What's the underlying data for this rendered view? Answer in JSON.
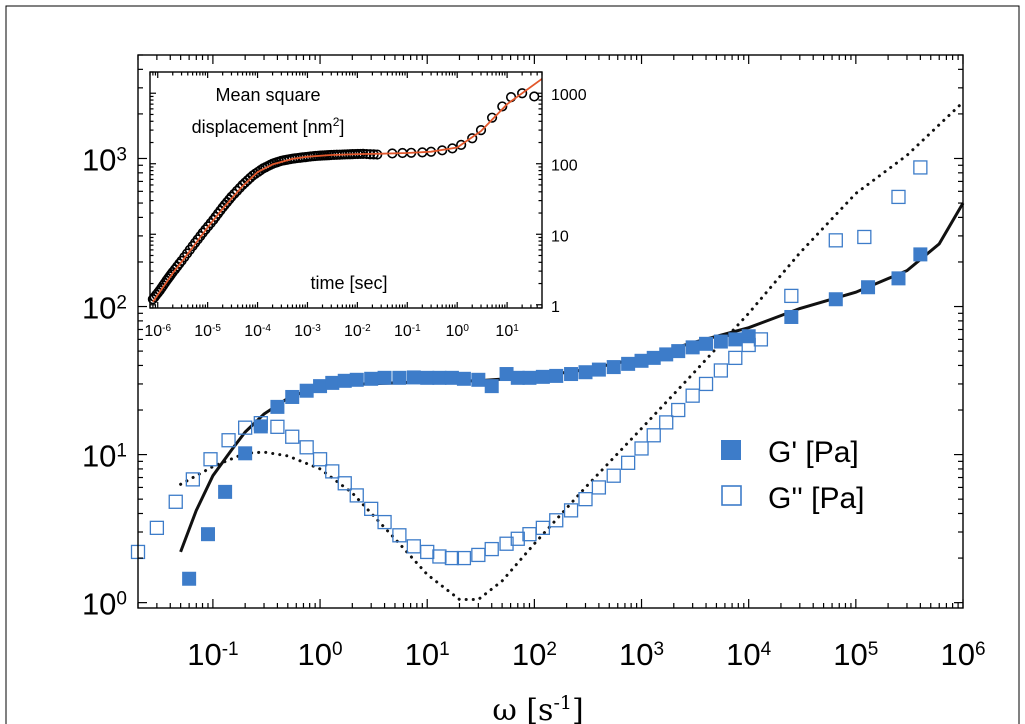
{
  "chart_data": [
    {
      "type": "scatter",
      "xlabel": "ω [s-1]",
      "xlabel_parts": {
        "base": "ω [s",
        "sup": "-1",
        "end": "]"
      },
      "ylabel": "",
      "x_scale": "log",
      "y_scale": "log",
      "xlim": [
        0.02,
        1000000
      ],
      "ylim": [
        0.92,
        5000
      ],
      "x_tick_labels": [
        {
          "value": 0.1,
          "base": "10",
          "exp": "-1"
        },
        {
          "value": 1,
          "base": "10",
          "exp": "0"
        },
        {
          "value": 10,
          "base": "10",
          "exp": "1"
        },
        {
          "value": 100,
          "base": "10",
          "exp": "2"
        },
        {
          "value": 1000,
          "base": "10",
          "exp": "3"
        },
        {
          "value": 10000,
          "base": "10",
          "exp": "4"
        },
        {
          "value": 100000,
          "base": "10",
          "exp": "5"
        },
        {
          "value": 1000000,
          "base": "10",
          "exp": "6"
        }
      ],
      "y_tick_labels": [
        {
          "value": 1,
          "base": "10",
          "exp": "0"
        },
        {
          "value": 10,
          "base": "10",
          "exp": "1"
        },
        {
          "value": 100,
          "base": "10",
          "exp": "2"
        },
        {
          "value": 1000,
          "base": "10",
          "exp": "3"
        }
      ],
      "legend_position": "right",
      "series": [
        {
          "name": "G' [Pa]",
          "marker": "filled-square",
          "color": "#3d7cc9",
          "points": [
            [
              0.06,
              1.45
            ],
            [
              0.09,
              2.9
            ],
            [
              0.13,
              5.6
            ],
            [
              0.2,
              10.2
            ],
            [
              0.28,
              15.5
            ],
            [
              0.4,
              21
            ],
            [
              0.55,
              24.5
            ],
            [
              0.75,
              27
            ],
            [
              1.0,
              29
            ],
            [
              1.3,
              30.5
            ],
            [
              1.7,
              31.5
            ],
            [
              2.2,
              32
            ],
            [
              3.0,
              32.5
            ],
            [
              4.0,
              33
            ],
            [
              5.5,
              33
            ],
            [
              7.5,
              33.2
            ],
            [
              10,
              33
            ],
            [
              13,
              33
            ],
            [
              17,
              33
            ],
            [
              22,
              32.5
            ],
            [
              30,
              32
            ],
            [
              40,
              29
            ],
            [
              55,
              35
            ],
            [
              70,
              33
            ],
            [
              90,
              33
            ],
            [
              120,
              33.5
            ],
            [
              160,
              34
            ],
            [
              220,
              35
            ],
            [
              300,
              36
            ],
            [
              400,
              37.5
            ],
            [
              550,
              39
            ],
            [
              750,
              41
            ],
            [
              1000,
              43
            ],
            [
              1300,
              45
            ],
            [
              1700,
              47.5
            ],
            [
              2200,
              50
            ],
            [
              3000,
              53
            ],
            [
              4000,
              56
            ],
            [
              5500,
              58
            ],
            [
              7500,
              60
            ],
            [
              10000,
              63
            ],
            [
              25000,
              85
            ],
            [
              65000,
              112
            ],
            [
              130000,
              135
            ],
            [
              250000,
              155
            ],
            [
              400000,
              225
            ]
          ]
        },
        {
          "name": "G'' [Pa]",
          "marker": "open-square",
          "color": "#3d7cc9",
          "points": [
            [
              0.02,
              2.2
            ],
            [
              0.03,
              3.2
            ],
            [
              0.045,
              4.8
            ],
            [
              0.065,
              6.8
            ],
            [
              0.095,
              9.3
            ],
            [
              0.14,
              12.5
            ],
            [
              0.2,
              15.2
            ],
            [
              0.28,
              16.3
            ],
            [
              0.4,
              15.4
            ],
            [
              0.55,
              13.2
            ],
            [
              0.75,
              11.2
            ],
            [
              1.0,
              9.3
            ],
            [
              1.3,
              7.7
            ],
            [
              1.7,
              6.4
            ],
            [
              2.2,
              5.3
            ],
            [
              3.0,
              4.3
            ],
            [
              4.0,
              3.5
            ],
            [
              5.5,
              2.85
            ],
            [
              7.5,
              2.4
            ],
            [
              10,
              2.2
            ],
            [
              13,
              2.05
            ],
            [
              17,
              2.0
            ],
            [
              22,
              2.0
            ],
            [
              30,
              2.1
            ],
            [
              40,
              2.3
            ],
            [
              55,
              2.5
            ],
            [
              70,
              2.7
            ],
            [
              90,
              2.9
            ],
            [
              120,
              3.2
            ],
            [
              160,
              3.6
            ],
            [
              220,
              4.2
            ],
            [
              300,
              5.0
            ],
            [
              400,
              6.0
            ],
            [
              550,
              7.2
            ],
            [
              750,
              8.8
            ],
            [
              1000,
              11
            ],
            [
              1300,
              13.5
            ],
            [
              1700,
              16.5
            ],
            [
              2200,
              20
            ],
            [
              3000,
              25
            ],
            [
              4000,
              30
            ],
            [
              5500,
              37
            ],
            [
              7500,
              45
            ],
            [
              10000,
              55
            ],
            [
              13000,
              60
            ],
            [
              25000,
              118
            ],
            [
              65000,
              280
            ],
            [
              120000,
              295
            ],
            [
              250000,
              550
            ],
            [
              400000,
              870
            ]
          ]
        },
        {
          "name": "",
          "line": "solid",
          "color": "#111111",
          "points": [
            [
              0.05,
              2.2
            ],
            [
              0.07,
              4.2
            ],
            [
              0.1,
              7.2
            ],
            [
              0.15,
              10.8
            ],
            [
              0.2,
              14.2
            ],
            [
              0.3,
              18.8
            ],
            [
              0.5,
              24
            ],
            [
              0.7,
              26.5
            ],
            [
              1,
              28.2
            ],
            [
              2,
              29.8
            ],
            [
              5,
              30.5
            ],
            [
              10,
              31
            ],
            [
              30,
              31.5
            ],
            [
              100,
              33.5
            ],
            [
              300,
              37.5
            ],
            [
              1000,
              45
            ],
            [
              3000,
              57
            ],
            [
              10000,
              72
            ],
            [
              30000,
              97
            ],
            [
              100000,
              125
            ],
            [
              300000,
              175
            ],
            [
              600000,
              265
            ],
            [
              1000000,
              500
            ]
          ]
        },
        {
          "name": "",
          "line": "dotted",
          "color": "#111111",
          "points": [
            [
              0.05,
              6.3
            ],
            [
              0.1,
              8.3
            ],
            [
              0.2,
              10.2
            ],
            [
              0.3,
              10.4
            ],
            [
              0.5,
              9.8
            ],
            [
              1,
              8
            ],
            [
              2,
              5.5
            ],
            [
              5,
              2.7
            ],
            [
              10,
              1.55
            ],
            [
              20,
              1.05
            ],
            [
              30,
              1.05
            ],
            [
              50,
              1.4
            ],
            [
              100,
              2.5
            ],
            [
              300,
              6
            ],
            [
              1000,
              15
            ],
            [
              3000,
              35
            ],
            [
              10000,
              90
            ],
            [
              30000,
              230
            ],
            [
              100000,
              580
            ],
            [
              300000,
              1050
            ],
            [
              1000000,
              2400
            ]
          ]
        }
      ],
      "legend": [
        {
          "label": "G' [Pa]",
          "marker": "filled-square"
        },
        {
          "label": "G'' [Pa]",
          "marker": "open-square"
        }
      ]
    },
    {
      "type": "scatter",
      "title_lines": [
        "Mean square",
        "displacement [nm",
        "2",
        "]"
      ],
      "xlabel": "time [sec]",
      "x_scale": "log",
      "y_scale": "log",
      "xlim": [
        7e-07,
        50
      ],
      "ylim": [
        0.9,
        2000
      ],
      "y_axis_side": "right",
      "x_tick_labels": [
        {
          "value": 1e-06,
          "base": "10",
          "exp": "-6"
        },
        {
          "value": 1e-05,
          "base": "10",
          "exp": "-5"
        },
        {
          "value": 0.0001,
          "base": "10",
          "exp": "-4"
        },
        {
          "value": 0.001,
          "base": "10",
          "exp": "-3"
        },
        {
          "value": 0.01,
          "base": "10",
          "exp": "-2"
        },
        {
          "value": 0.1,
          "base": "10",
          "exp": "-1"
        },
        {
          "value": 1,
          "base": "10",
          "exp": "0"
        },
        {
          "value": 10,
          "base": "10",
          "exp": "1"
        }
      ],
      "y_tick_labels": [
        {
          "value": 1,
          "label": "1"
        },
        {
          "value": 10,
          "label": "10"
        },
        {
          "value": 100,
          "label": "100"
        },
        {
          "value": 1000,
          "label": "1000"
        }
      ],
      "series": [
        {
          "name": "",
          "marker": "open-circle",
          "color": "#000000",
          "points": [
            [
              8e-07,
              1.2
            ],
            [
              1.1e-06,
              1.6
            ],
            [
              1.5e-06,
              2.2
            ],
            [
              2e-06,
              2.9
            ],
            [
              3e-06,
              4.2
            ],
            [
              5e-06,
              6.8
            ],
            [
              8e-06,
              10.5
            ],
            [
              1.3e-05,
              16
            ],
            [
              2e-05,
              24
            ],
            [
              3e-05,
              34
            ],
            [
              5e-05,
              50
            ],
            [
              8e-05,
              68
            ],
            [
              0.00013,
              86
            ],
            [
              0.0002,
              100
            ],
            [
              0.0003,
              110
            ],
            [
              0.0005,
              118
            ],
            [
              0.0008,
              123
            ],
            [
              0.0013,
              128
            ],
            [
              0.002,
              131
            ],
            [
              0.003,
              133
            ],
            [
              0.005,
              135
            ],
            [
              0.008,
              137
            ],
            [
              0.013,
              138
            ],
            [
              0.025,
              135
            ],
            [
              0.05,
              140
            ],
            [
              0.08,
              142
            ],
            [
              0.12,
              143
            ],
            [
              0.2,
              145
            ],
            [
              0.3,
              148
            ],
            [
              0.5,
              155
            ],
            [
              0.8,
              165
            ],
            [
              1.2,
              185
            ],
            [
              2,
              230
            ],
            [
              3,
              300
            ],
            [
              5,
              450
            ],
            [
              8,
              650
            ],
            [
              12,
              880
            ],
            [
              20,
              1000
            ],
            [
              35,
              900
            ]
          ]
        },
        {
          "name": "",
          "line": "solid",
          "color": "#e2572b",
          "points": [
            [
              8e-07,
              1.1
            ],
            [
              2e-06,
              2.8
            ],
            [
              5e-06,
              6.5
            ],
            [
              1e-05,
              12.5
            ],
            [
              2e-05,
              23
            ],
            [
              5e-05,
              48
            ],
            [
              0.0001,
              76
            ],
            [
              0.0002,
              98
            ],
            [
              0.0005,
              117
            ],
            [
              0.001,
              126
            ],
            [
              0.003,
              133
            ],
            [
              0.01,
              137
            ],
            [
              0.03,
              139
            ],
            [
              0.1,
              142
            ],
            [
              0.3,
              148
            ],
            [
              1,
              170
            ],
            [
              3,
              290
            ],
            [
              10,
              700
            ],
            [
              50,
              1600
            ]
          ]
        }
      ]
    }
  ]
}
